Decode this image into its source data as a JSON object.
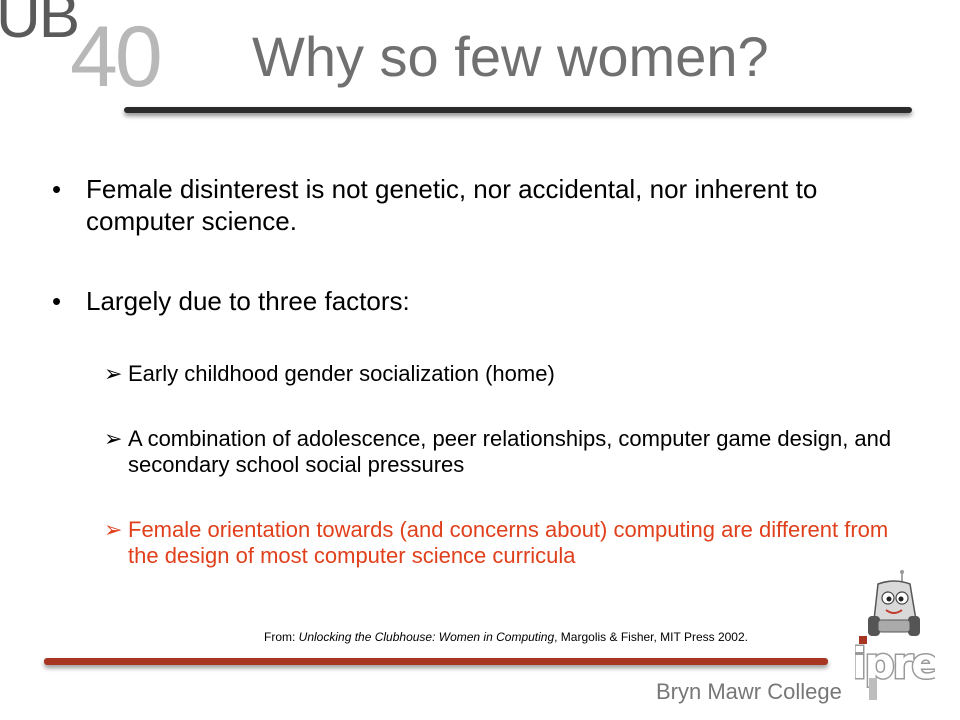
{
  "header": {
    "logo_letters": "UB",
    "logo_number": "40",
    "title": "Why so few women?"
  },
  "bullets": [
    {
      "marker": "•",
      "text": "Female disinterest is not genetic, nor accidental, nor inherent to computer science."
    },
    {
      "marker": "•",
      "text": "Largely due to three factors:"
    }
  ],
  "sub_bullets": [
    {
      "marker": "➢",
      "text": "Early childhood gender socialization (home)"
    },
    {
      "marker": "➢",
      "text": "A combination of adolescence, peer relationships, computer game design, and secondary school social pressures"
    },
    {
      "marker": "➢",
      "text": "Female orientation towards (and concerns about) computing are different from the design of most computer science curricula"
    }
  ],
  "highlight_color": "#e0401c",
  "citation": {
    "prefix": "From: ",
    "book": "Unlocking the Clubhouse: Women in Computing",
    "suffix": ", Margolis & Fisher, MIT Press 2002."
  },
  "footer": {
    "college": "Bryn Mawr College",
    "ipre_logo": "ipre"
  },
  "icons": {
    "robot": "scribbler-robot-icon",
    "ipre": "ipre-logo"
  }
}
